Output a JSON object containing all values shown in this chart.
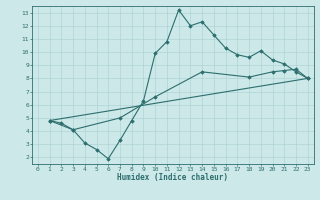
{
  "xlabel": "Humidex (Indice chaleur)",
  "xlim": [
    -0.5,
    23.5
  ],
  "ylim": [
    1.5,
    13.5
  ],
  "xticks": [
    0,
    1,
    2,
    3,
    4,
    5,
    6,
    7,
    8,
    9,
    10,
    11,
    12,
    13,
    14,
    15,
    16,
    17,
    18,
    19,
    20,
    21,
    22,
    23
  ],
  "yticks": [
    2,
    3,
    4,
    5,
    6,
    7,
    8,
    9,
    10,
    11,
    12,
    13
  ],
  "bg_color": "#cce8e8",
  "line_color": "#2d6e6e",
  "grid_color": "#aacfcf",
  "line1_x": [
    1,
    2,
    3,
    4,
    5,
    6,
    7,
    8,
    9,
    10,
    11,
    12,
    13,
    14,
    15,
    16,
    17,
    18,
    19,
    20,
    21,
    22,
    23
  ],
  "line1_y": [
    4.8,
    4.6,
    4.1,
    3.1,
    2.6,
    1.9,
    3.3,
    4.8,
    6.3,
    9.9,
    10.8,
    13.2,
    12.0,
    12.3,
    11.3,
    10.3,
    9.8,
    9.6,
    10.1,
    9.4,
    9.1,
    8.5,
    8.0
  ],
  "line2_x": [
    1,
    3,
    7,
    10,
    14,
    18,
    20,
    21,
    22,
    23
  ],
  "line2_y": [
    4.8,
    4.1,
    5.0,
    6.6,
    8.5,
    8.1,
    8.5,
    8.6,
    8.7,
    8.0
  ],
  "line3_x": [
    1,
    23
  ],
  "line3_y": [
    4.8,
    8.0
  ]
}
